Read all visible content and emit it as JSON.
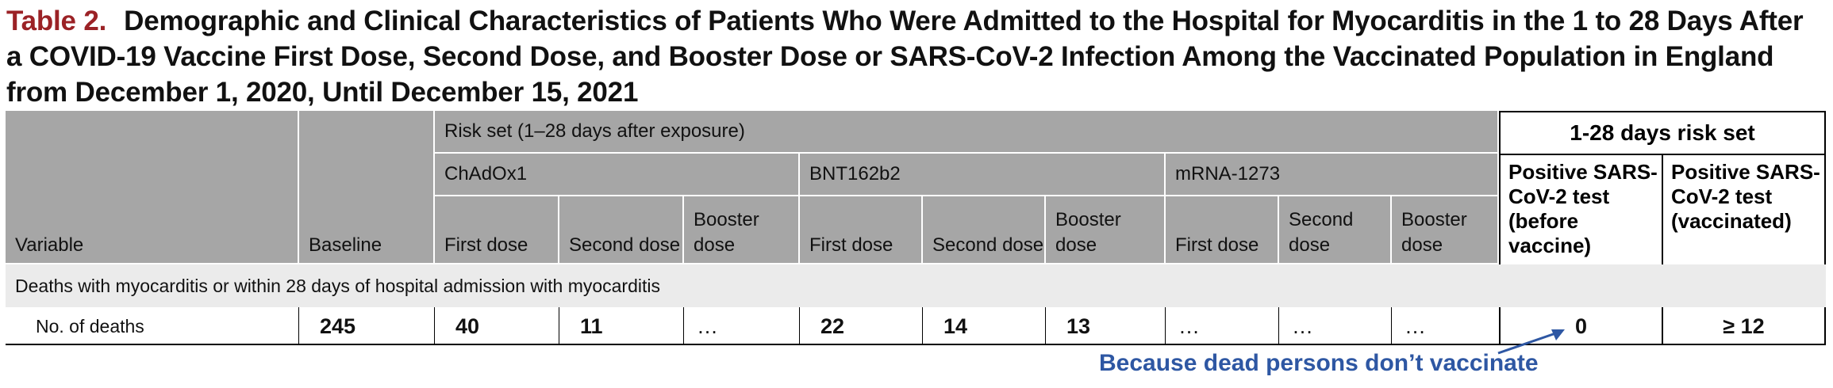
{
  "title": {
    "label": "Table 2.",
    "text": "Demographic and Clinical Characteristics of Patients Who Were Admitted to the Hospital for Myocarditis in the 1 to 28 Days After a COVID-19 Vaccine First Dose, Second Dose, and Booster Dose or SARS-CoV-2 Infection Among the Vaccinated Population in England from December 1, 2020, Until December 15, 2021"
  },
  "header": {
    "variable": "Variable",
    "baseline": "Baseline",
    "risk_set": "Risk set (1–28 days after exposure)",
    "vaccines": [
      "ChAdOx1",
      "BNT162b2",
      "mRNA-1273"
    ],
    "doses": [
      "First dose",
      "Second dose",
      "Booster dose",
      "First dose",
      "Second dose",
      "Booster dose",
      "First dose",
      "Second dose",
      "Booster dose"
    ],
    "risk_set_right": "1-28 days risk set",
    "positive_before": "Positive SARS-CoV-2 test (before vaccine)",
    "positive_vaccinated": "Positive SARS-CoV-2 test (vaccinated)"
  },
  "section": "Deaths with myocarditis or within 28 days of hospital admission with myocarditis",
  "row": {
    "label": "No. of deaths",
    "baseline": "245",
    "values": [
      "40",
      "11",
      "…",
      "22",
      "14",
      "13",
      "…",
      "…",
      "…"
    ],
    "positive_before": "0",
    "positive_vaccinated": "≥ 12"
  },
  "annotation": "Because dead persons don’t vaccinate",
  "colors": {
    "title_label": "#9b2226",
    "header_bg": "#a6a6a6",
    "section_bg": "#ebebeb",
    "annotation": "#2e57a3"
  }
}
